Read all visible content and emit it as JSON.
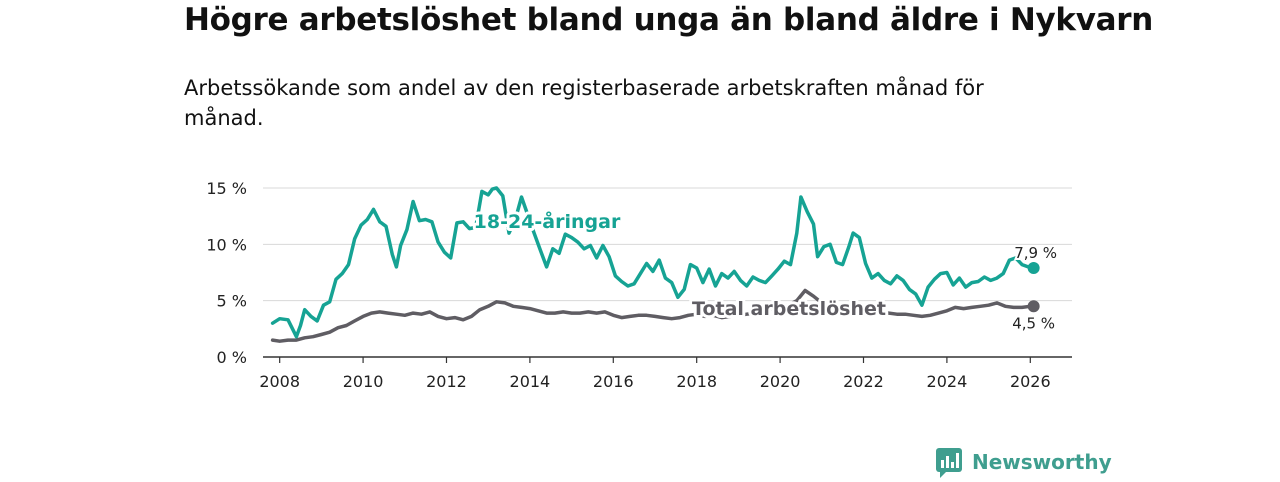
{
  "chart_data": {
    "type": "line",
    "title": "Högre arbetslöshet bland unga än bland äldre i Nykvarn",
    "subtitle": "Arbetssökande som andel av den registerbaserade arbetskraften månad för månad.",
    "xlabel": "",
    "ylabel": "",
    "xlim": [
      2007.6,
      2027.0
    ],
    "ylim": [
      0,
      15
    ],
    "x_ticks": [
      2008,
      2010,
      2012,
      2014,
      2016,
      2018,
      2020,
      2022,
      2024,
      2026
    ],
    "y_ticks": [
      0,
      5,
      10,
      15
    ],
    "y_tick_labels": [
      "0 %",
      "5 %",
      "10 %",
      "15 %"
    ],
    "grid": true,
    "series": [
      {
        "name": "18-24-åringar",
        "color": "#16a394",
        "end_label": "7,9 %",
        "points": [
          [
            2007.83,
            3.0
          ],
          [
            2008.0,
            3.4
          ],
          [
            2008.2,
            3.3
          ],
          [
            2008.4,
            1.8
          ],
          [
            2008.5,
            2.8
          ],
          [
            2008.6,
            4.2
          ],
          [
            2008.75,
            3.6
          ],
          [
            2008.9,
            3.2
          ],
          [
            2009.05,
            4.6
          ],
          [
            2009.2,
            4.9
          ],
          [
            2009.35,
            6.9
          ],
          [
            2009.5,
            7.4
          ],
          [
            2009.65,
            8.2
          ],
          [
            2009.8,
            10.5
          ],
          [
            2009.95,
            11.7
          ],
          [
            2010.1,
            12.2
          ],
          [
            2010.25,
            13.1
          ],
          [
            2010.4,
            12.0
          ],
          [
            2010.55,
            11.6
          ],
          [
            2010.7,
            9.1
          ],
          [
            2010.8,
            8.0
          ],
          [
            2010.9,
            9.9
          ],
          [
            2011.05,
            11.3
          ],
          [
            2011.2,
            13.8
          ],
          [
            2011.35,
            12.1
          ],
          [
            2011.5,
            12.2
          ],
          [
            2011.65,
            12.0
          ],
          [
            2011.8,
            10.2
          ],
          [
            2011.95,
            9.3
          ],
          [
            2012.1,
            8.8
          ],
          [
            2012.25,
            11.9
          ],
          [
            2012.4,
            12.0
          ],
          [
            2012.55,
            11.4
          ],
          [
            2012.7,
            11.5
          ],
          [
            2012.85,
            14.7
          ],
          [
            2013.0,
            14.4
          ],
          [
            2013.1,
            14.9
          ],
          [
            2013.2,
            15.0
          ],
          [
            2013.35,
            14.3
          ],
          [
            2013.5,
            11.0
          ],
          [
            2013.65,
            12.2
          ],
          [
            2013.8,
            14.2
          ],
          [
            2013.95,
            12.6
          ],
          [
            2014.1,
            11.0
          ],
          [
            2014.25,
            9.5
          ],
          [
            2014.4,
            8.0
          ],
          [
            2014.55,
            9.6
          ],
          [
            2014.7,
            9.2
          ],
          [
            2014.85,
            10.9
          ],
          [
            2015.0,
            10.6
          ],
          [
            2015.15,
            10.2
          ],
          [
            2015.3,
            9.6
          ],
          [
            2015.45,
            9.9
          ],
          [
            2015.6,
            8.8
          ],
          [
            2015.75,
            9.9
          ],
          [
            2015.9,
            8.9
          ],
          [
            2016.05,
            7.2
          ],
          [
            2016.2,
            6.7
          ],
          [
            2016.35,
            6.3
          ],
          [
            2016.5,
            6.5
          ],
          [
            2016.65,
            7.4
          ],
          [
            2016.8,
            8.3
          ],
          [
            2016.95,
            7.6
          ],
          [
            2017.1,
            8.6
          ],
          [
            2017.25,
            7.0
          ],
          [
            2017.4,
            6.6
          ],
          [
            2017.55,
            5.3
          ],
          [
            2017.7,
            6.0
          ],
          [
            2017.85,
            8.2
          ],
          [
            2018.0,
            7.9
          ],
          [
            2018.15,
            6.6
          ],
          [
            2018.3,
            7.8
          ],
          [
            2018.45,
            6.3
          ],
          [
            2018.6,
            7.4
          ],
          [
            2018.75,
            7.0
          ],
          [
            2018.9,
            7.6
          ],
          [
            2019.05,
            6.8
          ],
          [
            2019.2,
            6.3
          ],
          [
            2019.35,
            7.1
          ],
          [
            2019.5,
            6.8
          ],
          [
            2019.65,
            6.6
          ],
          [
            2019.8,
            7.2
          ],
          [
            2019.95,
            7.8
          ],
          [
            2020.1,
            8.5
          ],
          [
            2020.25,
            8.2
          ],
          [
            2020.4,
            11.0
          ],
          [
            2020.5,
            14.2
          ],
          [
            2020.65,
            12.9
          ],
          [
            2020.8,
            11.8
          ],
          [
            2020.9,
            8.9
          ],
          [
            2021.05,
            9.8
          ],
          [
            2021.2,
            10.0
          ],
          [
            2021.35,
            8.4
          ],
          [
            2021.5,
            8.2
          ],
          [
            2021.65,
            9.8
          ],
          [
            2021.75,
            11.0
          ],
          [
            2021.9,
            10.6
          ],
          [
            2022.05,
            8.3
          ],
          [
            2022.2,
            7.0
          ],
          [
            2022.35,
            7.4
          ],
          [
            2022.5,
            6.8
          ],
          [
            2022.65,
            6.5
          ],
          [
            2022.8,
            7.2
          ],
          [
            2022.95,
            6.8
          ],
          [
            2023.1,
            6.0
          ],
          [
            2023.25,
            5.6
          ],
          [
            2023.4,
            4.6
          ],
          [
            2023.55,
            6.2
          ],
          [
            2023.7,
            6.9
          ],
          [
            2023.85,
            7.4
          ],
          [
            2024.0,
            7.5
          ],
          [
            2024.15,
            6.4
          ],
          [
            2024.3,
            7.0
          ],
          [
            2024.45,
            6.2
          ],
          [
            2024.6,
            6.6
          ],
          [
            2024.75,
            6.7
          ],
          [
            2024.9,
            7.1
          ],
          [
            2025.05,
            6.8
          ],
          [
            2025.2,
            7.0
          ],
          [
            2025.35,
            7.4
          ],
          [
            2025.5,
            8.6
          ],
          [
            2025.65,
            8.8
          ],
          [
            2025.8,
            8.2
          ],
          [
            2025.95,
            8.0
          ],
          [
            2026.08,
            7.9
          ]
        ]
      },
      {
        "name": "Total arbetslöshet",
        "color": "#5f5d63",
        "end_label": "4,5 %",
        "points": [
          [
            2007.83,
            1.5
          ],
          [
            2008.0,
            1.4
          ],
          [
            2008.2,
            1.5
          ],
          [
            2008.4,
            1.5
          ],
          [
            2008.6,
            1.7
          ],
          [
            2008.8,
            1.8
          ],
          [
            2009.0,
            2.0
          ],
          [
            2009.2,
            2.2
          ],
          [
            2009.4,
            2.6
          ],
          [
            2009.6,
            2.8
          ],
          [
            2009.8,
            3.2
          ],
          [
            2010.0,
            3.6
          ],
          [
            2010.2,
            3.9
          ],
          [
            2010.4,
            4.0
          ],
          [
            2010.6,
            3.9
          ],
          [
            2010.8,
            3.8
          ],
          [
            2011.0,
            3.7
          ],
          [
            2011.2,
            3.9
          ],
          [
            2011.4,
            3.8
          ],
          [
            2011.6,
            4.0
          ],
          [
            2011.8,
            3.6
          ],
          [
            2012.0,
            3.4
          ],
          [
            2012.2,
            3.5
          ],
          [
            2012.4,
            3.3
          ],
          [
            2012.6,
            3.6
          ],
          [
            2012.8,
            4.2
          ],
          [
            2013.0,
            4.5
          ],
          [
            2013.2,
            4.9
          ],
          [
            2013.4,
            4.8
          ],
          [
            2013.6,
            4.5
          ],
          [
            2013.8,
            4.4
          ],
          [
            2014.0,
            4.3
          ],
          [
            2014.2,
            4.1
          ],
          [
            2014.4,
            3.9
          ],
          [
            2014.6,
            3.9
          ],
          [
            2014.8,
            4.0
          ],
          [
            2015.0,
            3.9
          ],
          [
            2015.2,
            3.9
          ],
          [
            2015.4,
            4.0
          ],
          [
            2015.6,
            3.9
          ],
          [
            2015.8,
            4.0
          ],
          [
            2016.0,
            3.7
          ],
          [
            2016.2,
            3.5
          ],
          [
            2016.4,
            3.6
          ],
          [
            2016.6,
            3.7
          ],
          [
            2016.8,
            3.7
          ],
          [
            2017.0,
            3.6
          ],
          [
            2017.2,
            3.5
          ],
          [
            2017.4,
            3.4
          ],
          [
            2017.6,
            3.5
          ],
          [
            2017.8,
            3.7
          ],
          [
            2018.0,
            3.8
          ],
          [
            2018.2,
            3.6
          ],
          [
            2018.4,
            3.7
          ],
          [
            2018.6,
            3.5
          ],
          [
            2018.8,
            3.6
          ],
          [
            2019.0,
            3.7
          ],
          [
            2019.2,
            3.8
          ],
          [
            2019.4,
            3.9
          ],
          [
            2019.6,
            4.1
          ],
          [
            2019.8,
            4.3
          ],
          [
            2020.0,
            4.5
          ],
          [
            2020.2,
            4.6
          ],
          [
            2020.4,
            5.0
          ],
          [
            2020.6,
            5.9
          ],
          [
            2020.8,
            5.4
          ],
          [
            2021.0,
            4.8
          ],
          [
            2021.2,
            4.6
          ],
          [
            2021.4,
            4.5
          ],
          [
            2021.6,
            4.3
          ],
          [
            2021.8,
            4.2
          ],
          [
            2022.0,
            4.1
          ],
          [
            2022.2,
            4.0
          ],
          [
            2022.4,
            3.9
          ],
          [
            2022.6,
            3.9
          ],
          [
            2022.8,
            3.8
          ],
          [
            2023.0,
            3.8
          ],
          [
            2023.2,
            3.7
          ],
          [
            2023.4,
            3.6
          ],
          [
            2023.6,
            3.7
          ],
          [
            2023.8,
            3.9
          ],
          [
            2024.0,
            4.1
          ],
          [
            2024.2,
            4.4
          ],
          [
            2024.4,
            4.3
          ],
          [
            2024.6,
            4.4
          ],
          [
            2024.8,
            4.5
          ],
          [
            2025.0,
            4.6
          ],
          [
            2025.2,
            4.8
          ],
          [
            2025.4,
            4.5
          ],
          [
            2025.6,
            4.4
          ],
          [
            2025.8,
            4.4
          ],
          [
            2026.0,
            4.5
          ],
          [
            2026.08,
            4.5
          ]
        ]
      }
    ]
  },
  "brand": {
    "name": "Newsworthy",
    "color": "#3f9e8f"
  }
}
